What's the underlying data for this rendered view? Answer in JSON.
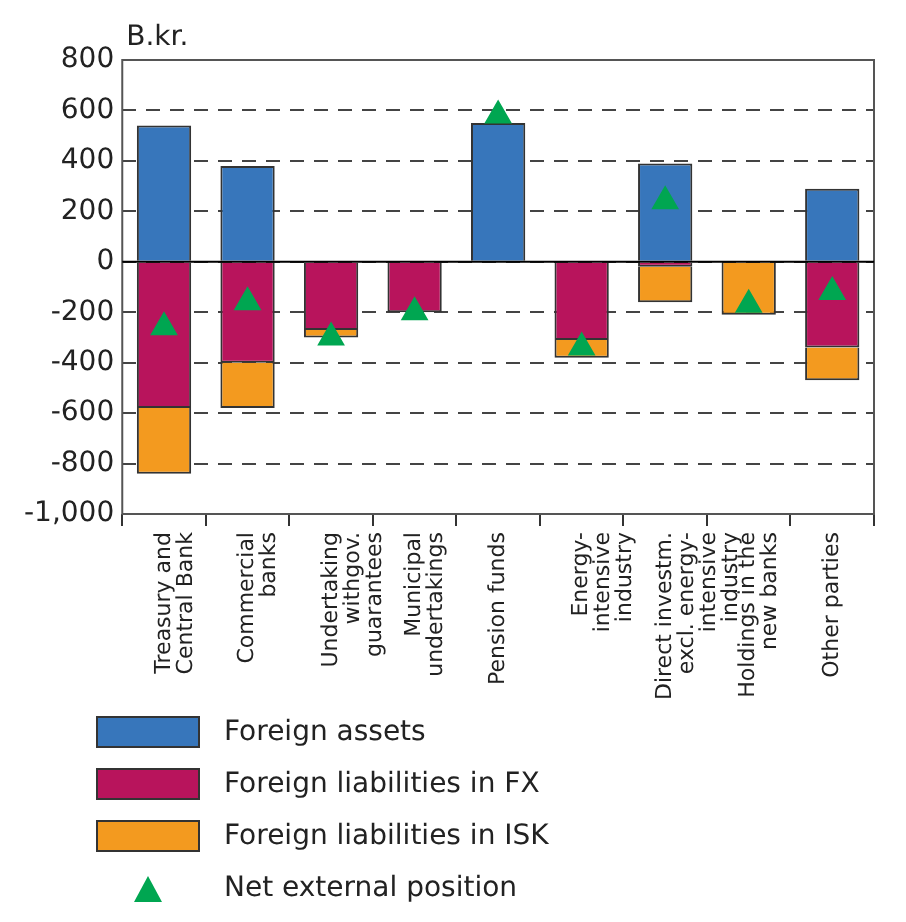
{
  "chart_data": {
    "type": "bar",
    "ylabel": "B.kr.",
    "stacked": true,
    "categories": [
      "Treasury and Central Bank",
      "Commercial banks",
      "Undertaking withgov. guarantees",
      "Municipal undertakings",
      "Pension funds",
      "Energy-intensive industry",
      "Direct investm. excl. energy-intensive industry",
      "Holdings in the new banks",
      "Other parties"
    ],
    "series": [
      {
        "name": "Foreign assets",
        "color": "#3776bb",
        "values": [
          540,
          380,
          null,
          null,
          550,
          null,
          390,
          null,
          290
        ]
      },
      {
        "name": "Foreign liabilities in FX",
        "color": "#b8145c",
        "values": [
          -580,
          -400,
          -270,
          -200,
          null,
          -310,
          -20,
          null,
          -340
        ]
      },
      {
        "name": "Foreign liabilities in ISK",
        "color": "#f39a1f",
        "values": [
          -260,
          -180,
          -30,
          null,
          null,
          -70,
          -140,
          -210,
          -130
        ]
      },
      {
        "name": "Net external position",
        "type": "scatter",
        "marker": "triangle",
        "color": "#00a651",
        "values": [
          -260,
          -160,
          -300,
          -200,
          580,
          -340,
          240,
          -170,
          -120
        ]
      }
    ],
    "ylim": [
      -1000,
      800
    ],
    "yticks": [
      {
        "value": -1000,
        "label": "-1,000"
      },
      -800,
      -600,
      -400,
      -200,
      0,
      200,
      400,
      600,
      800
    ],
    "grid": "y",
    "legend": "bottom"
  }
}
